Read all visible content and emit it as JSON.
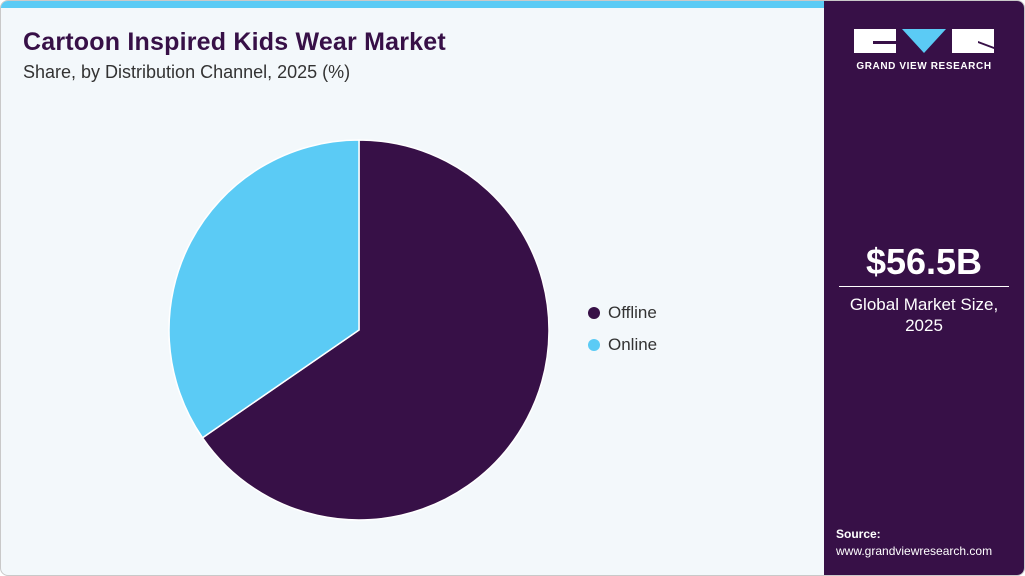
{
  "chart_data": {
    "type": "pie",
    "title": "Cartoon Inspired Kids Wear Market",
    "subtitle": "Share, by Distribution Channel, 2025 (%)",
    "categories": [
      "Offline",
      "Online"
    ],
    "values": [
      65.4,
      34.6
    ],
    "colors": [
      "#371047",
      "#5bcbf5"
    ],
    "legend_position": "right"
  },
  "sidebar": {
    "brand": "GRAND VIEW RESEARCH",
    "market_value": "$56.5B",
    "market_label_line1": "Global Market Size,",
    "market_label_line2": "2025",
    "source_label": "Source:",
    "source_url": "www.grandviewresearch.com"
  }
}
